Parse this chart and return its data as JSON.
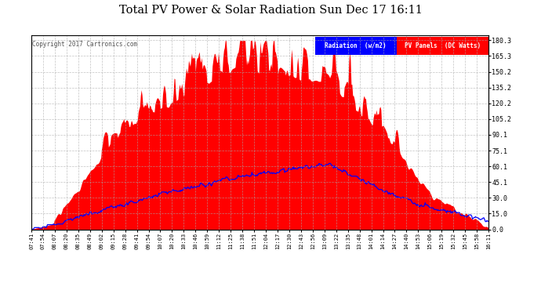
{
  "title": "Total PV Power & Solar Radiation Sun Dec 17 16:11",
  "copyright": "Copyright 2017 Cartronics.com",
  "bg_color": "#ffffff",
  "plot_bg_color": "#ffffff",
  "grid_color": "#aaaaaa",
  "pv_color": "#ff0000",
  "radiation_color": "#0000ff",
  "legend_radiation_bg": "#0000ff",
  "legend_pv_bg": "#ff0000",
  "legend_radiation_text": "Radiation  (w/m2)",
  "legend_pv_text": "PV Panels  (DC Watts)",
  "right_axis_labels": [
    "180.3",
    "165.3",
    "150.2",
    "135.2",
    "120.2",
    "105.2",
    "90.1",
    "75.1",
    "60.1",
    "45.1",
    "30.0",
    "15.0",
    "0.0"
  ],
  "right_axis_values": [
    180.3,
    165.3,
    150.2,
    135.2,
    120.2,
    105.2,
    90.1,
    75.1,
    60.1,
    45.1,
    30.0,
    15.0,
    0.0
  ],
  "x_tick_labels": [
    "07:41",
    "07:54",
    "08:07",
    "08:20",
    "08:35",
    "08:49",
    "09:02",
    "09:15",
    "09:28",
    "09:41",
    "09:54",
    "10:07",
    "10:20",
    "10:33",
    "10:46",
    "10:59",
    "11:12",
    "11:25",
    "11:38",
    "11:51",
    "12:04",
    "12:17",
    "12:30",
    "12:43",
    "12:56",
    "13:09",
    "13:22",
    "13:35",
    "13:48",
    "14:01",
    "14:14",
    "14:27",
    "14:40",
    "14:53",
    "15:06",
    "15:19",
    "15:32",
    "15:45",
    "15:58",
    "16:11"
  ],
  "y_max": 185,
  "figsize": [
    6.9,
    3.75
  ],
  "dpi": 100
}
